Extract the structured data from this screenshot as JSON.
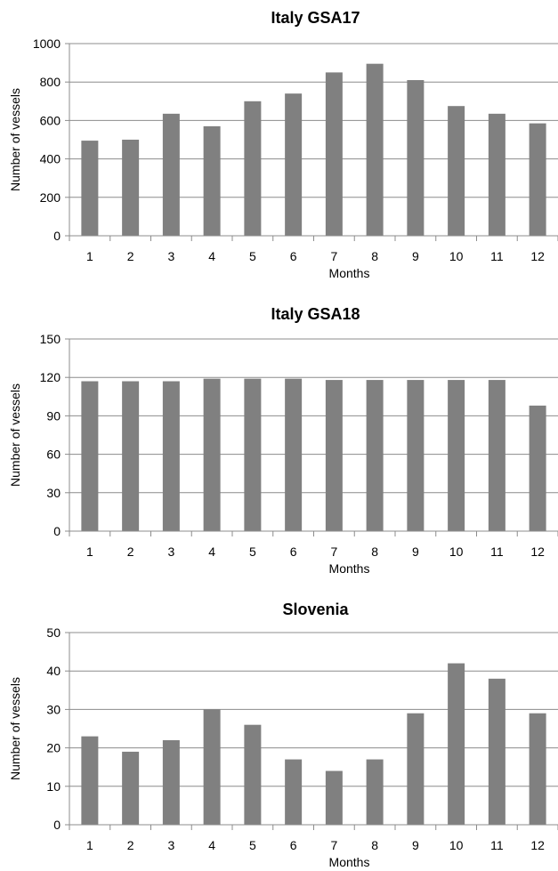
{
  "chart_data": [
    {
      "type": "bar",
      "title": "Italy GSA17",
      "xlabel": "Months",
      "ylabel": "Number of vessels",
      "categories": [
        "1",
        "2",
        "3",
        "4",
        "5",
        "6",
        "7",
        "8",
        "9",
        "10",
        "11",
        "12"
      ],
      "values": [
        495,
        500,
        635,
        570,
        700,
        740,
        850,
        895,
        810,
        675,
        635,
        585
      ],
      "ylim": [
        0,
        1000
      ],
      "yticks": [
        0,
        200,
        400,
        600,
        800,
        1000
      ],
      "grid": true,
      "bar_color": "#808080"
    },
    {
      "type": "bar",
      "title": "Italy GSA18",
      "xlabel": "Months",
      "ylabel": "Number of vessels",
      "categories": [
        "1",
        "2",
        "3",
        "4",
        "5",
        "6",
        "7",
        "8",
        "9",
        "10",
        "11",
        "12"
      ],
      "values": [
        117,
        117,
        117,
        119,
        119,
        119,
        118,
        118,
        118,
        118,
        118,
        98
      ],
      "ylim": [
        0,
        150
      ],
      "yticks": [
        0,
        30,
        60,
        90,
        120,
        150
      ],
      "grid": true,
      "bar_color": "#808080"
    },
    {
      "type": "bar",
      "title": "Slovenia",
      "xlabel": "Months",
      "ylabel": "Number of vessels",
      "categories": [
        "1",
        "2",
        "3",
        "4",
        "5",
        "6",
        "7",
        "8",
        "9",
        "10",
        "11",
        "12"
      ],
      "values": [
        23,
        19,
        22,
        30,
        26,
        17,
        14,
        17,
        29,
        42,
        38,
        29
      ],
      "ylim": [
        0,
        50
      ],
      "yticks": [
        0,
        10,
        20,
        30,
        40,
        50
      ],
      "grid": true,
      "bar_color": "#808080"
    }
  ]
}
